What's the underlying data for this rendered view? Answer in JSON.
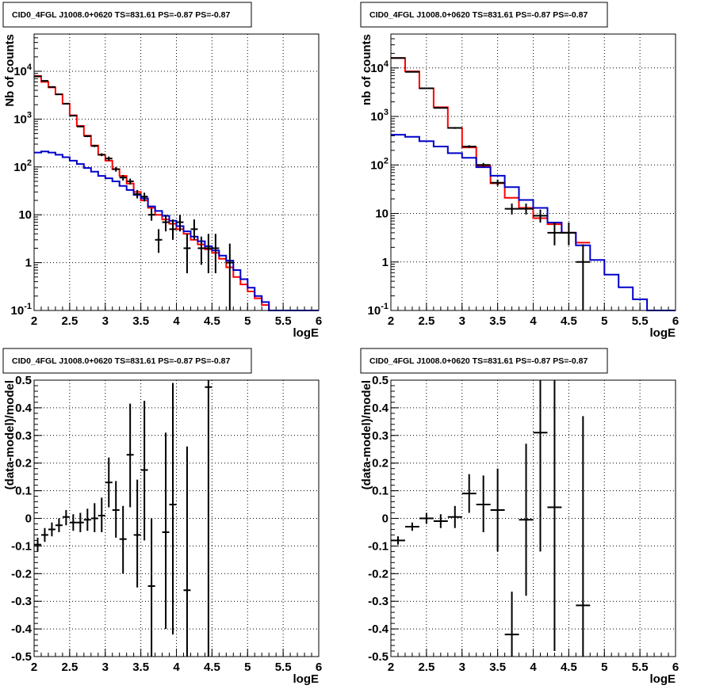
{
  "chart_data": [
    {
      "id": "tl",
      "type": "line",
      "title": "CID0_4FGL J1008.0+0620 TS=831.61 PS=-0.87 PS=-0.87",
      "xlabel": "logE",
      "ylabel": "Nb of counts",
      "xlim": [
        2,
        6
      ],
      "ylim": [
        0.1,
        60000
      ],
      "log_y": true,
      "grid": true,
      "x_ticks": [
        "2",
        "2.5",
        "3",
        "3.5",
        "4",
        "4.5",
        "5",
        "5.5",
        "6"
      ],
      "y_ticks": [
        "10^{-1}",
        "1",
        "10",
        "10^{2}",
        "10^{3}",
        "10^{4}"
      ],
      "series": [
        {
          "color": "#ff0000",
          "kind": "step",
          "bin_edges": [
            2.0,
            2.1,
            2.2,
            2.3,
            2.4,
            2.5,
            2.6,
            2.7,
            2.8,
            2.9,
            3.0,
            3.1,
            3.2,
            3.3,
            3.4,
            3.5,
            3.6,
            3.7,
            3.8,
            3.9,
            4.0,
            4.1,
            4.2,
            4.3,
            4.4,
            4.5,
            4.6,
            4.7,
            4.8,
            4.9,
            5.0,
            5.1,
            5.2,
            5.3,
            5.4,
            5.5
          ],
          "values": [
            8000,
            6000,
            4600,
            3300,
            2100,
            1200,
            720,
            450,
            280,
            180,
            135,
            90,
            65,
            45,
            30,
            20,
            14,
            10,
            8,
            6.5,
            5.0,
            4.0,
            3.0,
            2.4,
            1.9,
            1.6,
            1.2,
            0.8,
            0.5,
            0.35,
            0.25,
            0.18,
            0.13,
            0.1,
            0.1
          ]
        },
        {
          "color": "#0000cc",
          "kind": "step",
          "bin_edges": [
            2.0,
            2.1,
            2.2,
            2.3,
            2.4,
            2.5,
            2.6,
            2.7,
            2.8,
            2.9,
            3.0,
            3.1,
            3.2,
            3.3,
            3.4,
            3.5,
            3.6,
            3.7,
            3.8,
            3.9,
            4.0,
            4.1,
            4.2,
            4.3,
            4.4,
            4.5,
            4.6,
            4.7,
            4.8,
            4.9,
            5.0,
            5.1,
            5.2,
            5.3,
            5.4,
            5.5,
            5.6,
            5.7,
            5.8,
            5.9,
            6.0
          ],
          "values": [
            200,
            210,
            200,
            180,
            160,
            135,
            115,
            95,
            80,
            65,
            58,
            50,
            40,
            33,
            26,
            22,
            15,
            12,
            9.5,
            7.5,
            5.8,
            4.5,
            3.5,
            2.8,
            2.2,
            1.8,
            1.4,
            1.1,
            0.7,
            0.45,
            0.3,
            0.2,
            0.15,
            0.1,
            0.1,
            0.1,
            0.1,
            0.1,
            0.1,
            0.1
          ]
        }
      ],
      "points": [
        {
          "x": 2.05,
          "y": 7800,
          "xerr": 0.05,
          "ylo": 7600,
          "yhi": 8000
        },
        {
          "x": 2.15,
          "y": 6300,
          "xerr": 0.05,
          "ylo": 6100,
          "yhi": 6500
        },
        {
          "x": 2.25,
          "y": 4700,
          "xerr": 0.05,
          "ylo": 4550,
          "yhi": 4850
        },
        {
          "x": 2.35,
          "y": 3300,
          "xerr": 0.05,
          "ylo": 3200,
          "yhi": 3400
        },
        {
          "x": 2.45,
          "y": 2100,
          "xerr": 0.05,
          "ylo": 2050,
          "yhi": 2150
        },
        {
          "x": 2.55,
          "y": 1180,
          "xerr": 0.05,
          "ylo": 1150,
          "yhi": 1210
        },
        {
          "x": 2.65,
          "y": 700,
          "xerr": 0.05,
          "ylo": 680,
          "yhi": 725
        },
        {
          "x": 2.75,
          "y": 440,
          "xerr": 0.05,
          "ylo": 420,
          "yhi": 460
        },
        {
          "x": 2.85,
          "y": 275,
          "xerr": 0.05,
          "ylo": 260,
          "yhi": 290
        },
        {
          "x": 2.95,
          "y": 180,
          "xerr": 0.05,
          "ylo": 168,
          "yhi": 193
        },
        {
          "x": 3.05,
          "y": 150,
          "xerr": 0.05,
          "ylo": 135,
          "yhi": 165
        },
        {
          "x": 3.15,
          "y": 90,
          "xerr": 0.05,
          "ylo": 80,
          "yhi": 100
        },
        {
          "x": 3.25,
          "y": 60,
          "xerr": 0.05,
          "ylo": 52,
          "yhi": 68
        },
        {
          "x": 3.35,
          "y": 50,
          "xerr": 0.05,
          "ylo": 43,
          "yhi": 57
        },
        {
          "x": 3.45,
          "y": 27,
          "xerr": 0.05,
          "ylo": 22,
          "yhi": 33
        },
        {
          "x": 3.55,
          "y": 24,
          "xerr": 0.05,
          "ylo": 19,
          "yhi": 29
        },
        {
          "x": 3.65,
          "y": 10,
          "xerr": 0.05,
          "ylo": 7.5,
          "yhi": 13.5
        },
        {
          "x": 3.75,
          "y": 3,
          "xerr": 0.05,
          "ylo": 1.6,
          "yhi": 5
        },
        {
          "x": 3.85,
          "y": 7,
          "xerr": 0.05,
          "ylo": 4.5,
          "yhi": 10
        },
        {
          "x": 3.95,
          "y": 5,
          "xerr": 0.05,
          "ylo": 3,
          "yhi": 8
        },
        {
          "x": 4.05,
          "y": 7,
          "xerr": 0.05,
          "ylo": 4.5,
          "yhi": 10
        },
        {
          "x": 4.15,
          "y": 2,
          "xerr": 0.05,
          "ylo": 0.6,
          "yhi": 4
        },
        {
          "x": 4.25,
          "y": 5,
          "xerr": 0.05,
          "ylo": 3,
          "yhi": 8
        },
        {
          "x": 4.35,
          "y": 2,
          "xerr": 0.05,
          "ylo": 0.9,
          "yhi": 3.5
        },
        {
          "x": 4.45,
          "y": 2,
          "xerr": 0.05,
          "ylo": 0.6,
          "yhi": 4
        },
        {
          "x": 4.55,
          "y": 2,
          "xerr": 0.05,
          "ylo": 0.6,
          "yhi": 4
        },
        {
          "x": 4.75,
          "y": 1,
          "xerr": 0.05,
          "ylo": 0.1,
          "yhi": 2.5
        }
      ]
    },
    {
      "id": "tr",
      "type": "line",
      "title": "CID0_4FGL J1008.0+0620 TS=831.61 PS=-0.87 PS=-0.87",
      "xlabel": "logE",
      "ylabel": "nb of counts",
      "xlim": [
        2,
        6
      ],
      "ylim": [
        0.1,
        50000
      ],
      "log_y": true,
      "grid": true,
      "x_ticks": [
        "2",
        "2.5",
        "3",
        "3.5",
        "4",
        "4.5",
        "5",
        "5.5",
        "6"
      ],
      "y_ticks": [
        "10^{-1}",
        "1",
        "10",
        "10^{2}",
        "10^{3}",
        "10^{4}"
      ],
      "series": [
        {
          "color": "#ff0000",
          "kind": "step",
          "bin_edges": [
            2.0,
            2.2,
            2.4,
            2.6,
            2.8,
            3.0,
            3.2,
            3.4,
            3.6,
            3.8,
            4.0,
            4.2,
            4.4,
            4.6,
            4.8
          ],
          "values": [
            16000,
            8500,
            3800,
            1550,
            580,
            230,
            95,
            42,
            21,
            13,
            8,
            6,
            4,
            2.5
          ]
        },
        {
          "color": "#0000cc",
          "kind": "step",
          "bin_edges": [
            2.0,
            2.2,
            2.4,
            2.6,
            2.8,
            3.0,
            3.2,
            3.4,
            3.6,
            3.8,
            4.0,
            4.2,
            4.4,
            4.6,
            4.8,
            5.0,
            5.2,
            5.4,
            5.6,
            5.8,
            6.0
          ],
          "values": [
            420,
            380,
            310,
            240,
            175,
            140,
            90,
            60,
            35,
            19,
            13,
            6.5,
            4,
            2.2,
            1.1,
            0.55,
            0.3,
            0.17,
            0.1,
            0.1
          ]
        }
      ],
      "points": [
        {
          "x": 2.1,
          "y": 16000,
          "xerr": 0.1,
          "ylo": 15700,
          "yhi": 16300
        },
        {
          "x": 2.3,
          "y": 8300,
          "xerr": 0.1,
          "ylo": 8100,
          "yhi": 8500
        },
        {
          "x": 2.5,
          "y": 3800,
          "xerr": 0.1,
          "ylo": 3700,
          "yhi": 3900
        },
        {
          "x": 2.7,
          "y": 1500,
          "xerr": 0.1,
          "ylo": 1460,
          "yhi": 1540
        },
        {
          "x": 2.9,
          "y": 580,
          "xerr": 0.1,
          "ylo": 555,
          "yhi": 605
        },
        {
          "x": 3.1,
          "y": 240,
          "xerr": 0.1,
          "ylo": 225,
          "yhi": 255
        },
        {
          "x": 3.3,
          "y": 100,
          "xerr": 0.1,
          "ylo": 90,
          "yhi": 110
        },
        {
          "x": 3.5,
          "y": 43,
          "xerr": 0.1,
          "ylo": 37,
          "yhi": 50
        },
        {
          "x": 3.7,
          "y": 12.5,
          "xerr": 0.1,
          "ylo": 9.5,
          "yhi": 16
        },
        {
          "x": 3.9,
          "y": 12.5,
          "xerr": 0.1,
          "ylo": 9.5,
          "yhi": 16
        },
        {
          "x": 4.1,
          "y": 9,
          "xerr": 0.1,
          "ylo": 6.5,
          "yhi": 12
        },
        {
          "x": 4.3,
          "y": 4,
          "xerr": 0.1,
          "ylo": 2.2,
          "yhi": 6.5
        },
        {
          "x": 4.5,
          "y": 4,
          "xerr": 0.1,
          "ylo": 2.2,
          "yhi": 6.5
        },
        {
          "x": 4.7,
          "y": 1,
          "xerr": 0.1,
          "ylo": 0.1,
          "yhi": 2.3
        }
      ]
    },
    {
      "id": "bl",
      "type": "scatter",
      "title": "CID0_4FGL J1008.0+0620 TS=831.61 PS=-0.87 PS=-0.87",
      "xlabel": "logE",
      "ylabel": "(data-model)/model",
      "xlim": [
        2,
        6
      ],
      "ylim": [
        -0.5,
        0.5
      ],
      "log_y": false,
      "grid": true,
      "x_ticks": [
        "2",
        "2.5",
        "3",
        "3.5",
        "4",
        "4.5",
        "5",
        "5.5",
        "6"
      ],
      "y_ticks": [
        "-0.5",
        "-0.4",
        "-0.3",
        "-0.2",
        "-0.1",
        "0",
        "0.1",
        "0.2",
        "0.3",
        "0.4",
        "0.5"
      ],
      "series": [],
      "points": [
        {
          "x": 2.05,
          "y": -0.095,
          "xerr": 0.05,
          "ylo": -0.12,
          "yhi": -0.07
        },
        {
          "x": 2.15,
          "y": -0.06,
          "xerr": 0.05,
          "ylo": -0.085,
          "yhi": -0.035
        },
        {
          "x": 2.25,
          "y": -0.04,
          "xerr": 0.05,
          "ylo": -0.065,
          "yhi": -0.015
        },
        {
          "x": 2.35,
          "y": -0.025,
          "xerr": 0.05,
          "ylo": -0.05,
          "yhi": 0.0
        },
        {
          "x": 2.45,
          "y": 0.005,
          "xerr": 0.05,
          "ylo": -0.025,
          "yhi": 0.03
        },
        {
          "x": 2.55,
          "y": -0.015,
          "xerr": 0.05,
          "ylo": -0.045,
          "yhi": 0.015
        },
        {
          "x": 2.65,
          "y": -0.015,
          "xerr": 0.05,
          "ylo": -0.05,
          "yhi": 0.02
        },
        {
          "x": 2.75,
          "y": -0.005,
          "xerr": 0.05,
          "ylo": -0.045,
          "yhi": 0.035
        },
        {
          "x": 2.85,
          "y": 0.0,
          "xerr": 0.05,
          "ylo": -0.05,
          "yhi": 0.055
        },
        {
          "x": 2.95,
          "y": 0.01,
          "xerr": 0.05,
          "ylo": -0.05,
          "yhi": 0.075
        },
        {
          "x": 3.05,
          "y": 0.13,
          "xerr": 0.05,
          "ylo": 0.04,
          "yhi": 0.22
        },
        {
          "x": 3.15,
          "y": 0.03,
          "xerr": 0.05,
          "ylo": -0.07,
          "yhi": 0.135
        },
        {
          "x": 3.25,
          "y": -0.075,
          "xerr": 0.05,
          "ylo": -0.2,
          "yhi": 0.045
        },
        {
          "x": 3.35,
          "y": 0.23,
          "xerr": 0.05,
          "ylo": 0.04,
          "yhi": 0.415
        },
        {
          "x": 3.45,
          "y": -0.06,
          "xerr": 0.05,
          "ylo": -0.25,
          "yhi": 0.14
        },
        {
          "x": 3.55,
          "y": 0.175,
          "xerr": 0.05,
          "ylo": -0.08,
          "yhi": 0.425
        },
        {
          "x": 3.65,
          "y": -0.245,
          "xerr": 0.05,
          "ylo": -0.5,
          "yhi": 0.0
        },
        {
          "x": 3.85,
          "y": -0.05,
          "xerr": 0.05,
          "ylo": -0.4,
          "yhi": 0.31
        },
        {
          "x": 3.95,
          "y": 0.05,
          "xerr": 0.05,
          "ylo": -0.42,
          "yhi": 0.49
        },
        {
          "x": 4.15,
          "y": -0.26,
          "xerr": 0.05,
          "ylo": -0.5,
          "yhi": 0.26
        },
        {
          "x": 4.45,
          "y": 0.475,
          "xerr": 0.05,
          "ylo": -0.5,
          "yhi": 0.5
        }
      ]
    },
    {
      "id": "br",
      "type": "scatter",
      "title": "CID0_4FGL J1008.0+0620 TS=831.61 PS=-0.87 PS=-0.87",
      "xlabel": "logE",
      "ylabel": "(data-model)/model",
      "xlim": [
        2,
        6
      ],
      "ylim": [
        -0.5,
        0.5
      ],
      "log_y": false,
      "grid": true,
      "x_ticks": [
        "2",
        "2.5",
        "3",
        "3.5",
        "4",
        "4.5",
        "5",
        "5.5",
        "6"
      ],
      "y_ticks": [
        "-0.5",
        "-0.4",
        "-0.3",
        "-0.2",
        "-0.1",
        "0",
        "0.1",
        "0.2",
        "0.3",
        "0.4",
        "0.5"
      ],
      "series": [],
      "points": [
        {
          "x": 2.1,
          "y": -0.08,
          "xerr": 0.1,
          "ylo": -0.095,
          "yhi": -0.065
        },
        {
          "x": 2.3,
          "y": -0.03,
          "xerr": 0.1,
          "ylo": -0.045,
          "yhi": -0.015
        },
        {
          "x": 2.5,
          "y": 0.0,
          "xerr": 0.1,
          "ylo": -0.02,
          "yhi": 0.02
        },
        {
          "x": 2.7,
          "y": -0.01,
          "xerr": 0.1,
          "ylo": -0.035,
          "yhi": 0.015
        },
        {
          "x": 2.9,
          "y": 0.005,
          "xerr": 0.1,
          "ylo": -0.035,
          "yhi": 0.045
        },
        {
          "x": 3.1,
          "y": 0.09,
          "xerr": 0.1,
          "ylo": 0.02,
          "yhi": 0.16
        },
        {
          "x": 3.3,
          "y": 0.05,
          "xerr": 0.1,
          "ylo": -0.05,
          "yhi": 0.155
        },
        {
          "x": 3.5,
          "y": 0.03,
          "xerr": 0.1,
          "ylo": -0.12,
          "yhi": 0.18
        },
        {
          "x": 3.7,
          "y": -0.42,
          "xerr": 0.1,
          "ylo": -0.5,
          "yhi": -0.265
        },
        {
          "x": 3.9,
          "y": -0.005,
          "xerr": 0.1,
          "ylo": -0.28,
          "yhi": 0.27
        },
        {
          "x": 4.1,
          "y": 0.31,
          "xerr": 0.1,
          "ylo": -0.12,
          "yhi": 0.5
        },
        {
          "x": 4.3,
          "y": 0.04,
          "xerr": 0.1,
          "ylo": -0.48,
          "yhi": 0.5
        },
        {
          "x": 4.7,
          "y": -0.315,
          "xerr": 0.1,
          "ylo": -0.5,
          "yhi": 0.37
        }
      ]
    }
  ]
}
